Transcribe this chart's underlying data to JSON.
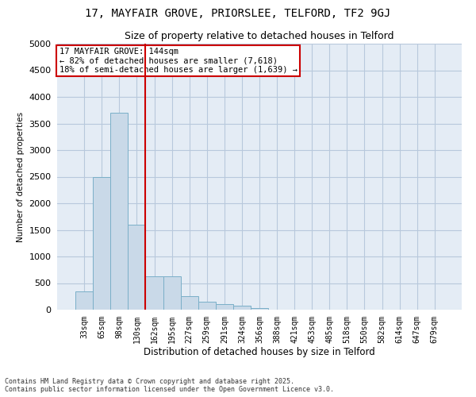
{
  "title1": "17, MAYFAIR GROVE, PRIORSLEE, TELFORD, TF2 9GJ",
  "title2": "Size of property relative to detached houses in Telford",
  "xlabel": "Distribution of detached houses by size in Telford",
  "ylabel": "Number of detached properties",
  "categories": [
    "33sqm",
    "65sqm",
    "98sqm",
    "130sqm",
    "162sqm",
    "195sqm",
    "227sqm",
    "259sqm",
    "291sqm",
    "324sqm",
    "356sqm",
    "388sqm",
    "421sqm",
    "453sqm",
    "485sqm",
    "518sqm",
    "550sqm",
    "582sqm",
    "614sqm",
    "647sqm",
    "679sqm"
  ],
  "values": [
    350,
    2500,
    3700,
    1600,
    620,
    620,
    250,
    150,
    100,
    70,
    30,
    0,
    0,
    0,
    0,
    0,
    0,
    0,
    0,
    0,
    0
  ],
  "bar_color": "#c9d9e8",
  "bar_edge_color": "#7aafc8",
  "grid_color": "#b8c8dc",
  "background_color": "#e4ecf5",
  "vline_x": 3.5,
  "vline_color": "#cc0000",
  "annotation_text": "17 MAYFAIR GROVE: 144sqm\n← 82% of detached houses are smaller (7,618)\n18% of semi-detached houses are larger (1,639) →",
  "annotation_box_color": "#cc0000",
  "footer1": "Contains HM Land Registry data © Crown copyright and database right 2025.",
  "footer2": "Contains public sector information licensed under the Open Government Licence v3.0.",
  "ylim": [
    0,
    5000
  ],
  "yticks": [
    0,
    500,
    1000,
    1500,
    2000,
    2500,
    3000,
    3500,
    4000,
    4500,
    5000
  ]
}
